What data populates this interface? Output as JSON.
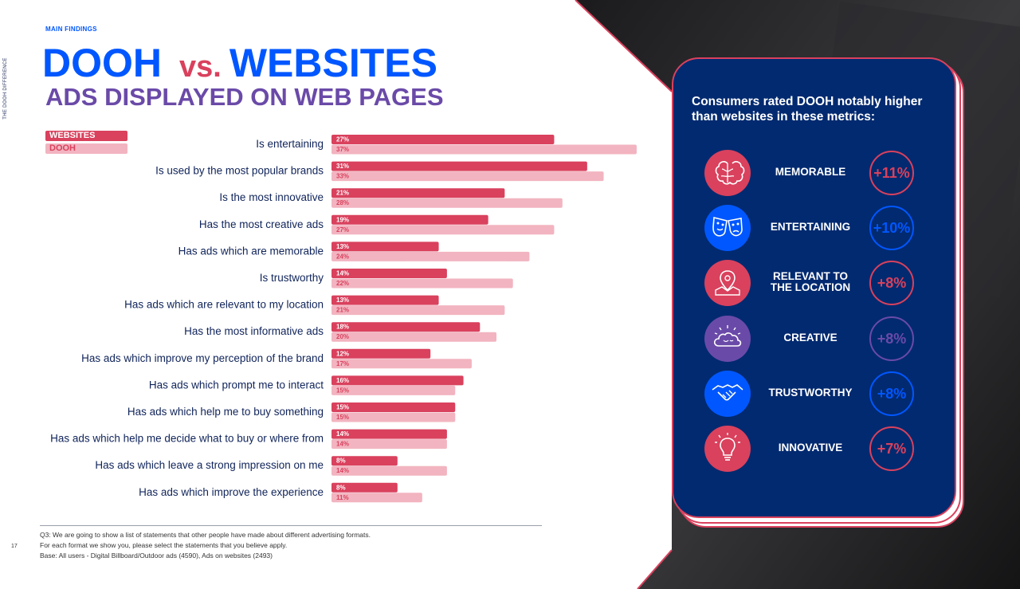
{
  "page": {
    "side_label": "THE DOOH DIFFERENCE",
    "kicker": "MAIN FINDINGS",
    "title_a": "DOOH",
    "title_vs": "vs.",
    "title_b": "WEBSITES",
    "subtitle": "ADS DISPLAYED ON WEB PAGES",
    "page_number": "17",
    "note_lines": [
      "Q3: We are going to show a list of statements that other people have made about different advertising formats.",
      "For each format we show you, please select the statements that you believe apply.",
      "Base: All users - Digital Billboard/Outdoor ads (4590), Ads on websites (2493)"
    ]
  },
  "colors": {
    "websites": "#d9415d",
    "dooh": "#f2b4c0",
    "navy": "#022a70",
    "blue": "#0057ff",
    "purple": "#6a4aa8"
  },
  "chart_data": {
    "type": "bar",
    "orientation": "horizontal",
    "categories": [
      "Is entertaining",
      "Is used by the most popular brands",
      "Is the most innovative",
      "Has the most creative ads",
      "Has ads which are memorable",
      "Is trustworthy",
      "Has ads which are relevant to my location",
      "Has the most informative ads",
      "Has ads which improve my perception of the brand",
      "Has ads which prompt me to interact",
      "Has ads which help me to buy something",
      "Has ads which help me decide what to buy or where from",
      "Has ads which leave a strong impression on me",
      "Has ads which improve the experience"
    ],
    "series": [
      {
        "name": "WEBSITES",
        "color": "#d9415d",
        "values": [
          27,
          31,
          21,
          19,
          13,
          14,
          13,
          18,
          12,
          16,
          15,
          14,
          8,
          8
        ]
      },
      {
        "name": "DOOH",
        "color": "#f2b4c0",
        "values": [
          37,
          33,
          28,
          27,
          24,
          22,
          21,
          20,
          17,
          15,
          15,
          14,
          14,
          11
        ]
      }
    ],
    "value_suffix": "%",
    "xlim": [
      0,
      40
    ],
    "legend_position": "top-left",
    "grid": false
  },
  "panel": {
    "heading": "Consumers rated DOOH notably higher than websites in these metrics:",
    "metrics": [
      {
        "label_lines": [
          "MEMORABLE"
        ],
        "value": "+11%",
        "icon": "brain-icon",
        "color": "#d9415d"
      },
      {
        "label_lines": [
          "ENTERTAINING"
        ],
        "value": "+10%",
        "icon": "theater-masks-icon",
        "color": "#0057ff"
      },
      {
        "label_lines": [
          "RELEVANT TO",
          "THE LOCATION"
        ],
        "value": "+8%",
        "icon": "map-pin-icon",
        "color": "#d9415d"
      },
      {
        "label_lines": [
          "CREATIVE"
        ],
        "value": "+8%",
        "icon": "creative-cloud-icon",
        "color": "#6a4aa8"
      },
      {
        "label_lines": [
          "TRUSTWORTHY"
        ],
        "value": "+8%",
        "icon": "handshake-icon",
        "color": "#0057ff"
      },
      {
        "label_lines": [
          "INNOVATIVE"
        ],
        "value": "+7%",
        "icon": "lightbulb-icon",
        "color": "#d9415d"
      }
    ]
  }
}
